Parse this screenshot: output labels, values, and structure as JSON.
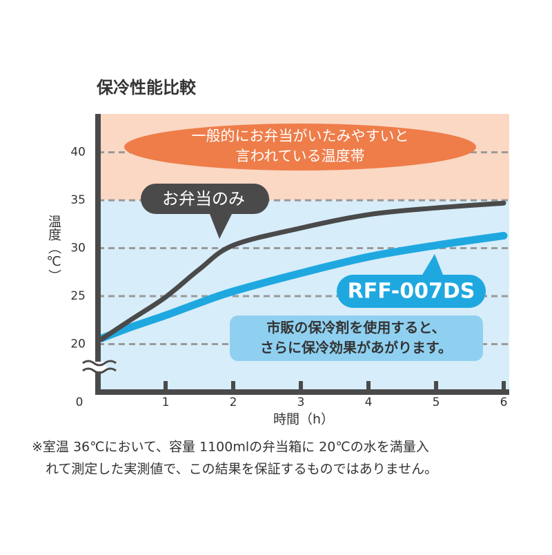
{
  "chart_data": {
    "type": "line",
    "title": "保冷性能比較",
    "y_label": "温度（℃）",
    "x_label": "時間（h）",
    "x": [
      0.05,
      0.5,
      1,
      1.5,
      2,
      3,
      4,
      5,
      6
    ],
    "series": [
      {
        "name": "お弁当のみ",
        "color": "#4a4a4a",
        "values": [
          20.5,
          22.6,
          24.9,
          27.8,
          30.3,
          32.1,
          33.5,
          34.2,
          34.7
        ]
      },
      {
        "name": "RFF-007DS",
        "color": "#1fa8e0",
        "values": [
          20.6,
          21.8,
          23.0,
          24.3,
          25.5,
          27.4,
          29.1,
          30.3,
          31.3
        ]
      }
    ],
    "xlim": [
      0,
      6
    ],
    "xticks": [
      0,
      1,
      2,
      3,
      4,
      5,
      6
    ],
    "ylim": [
      15,
      44
    ],
    "yticks": [
      20,
      25,
      30,
      35,
      40
    ],
    "grid": true,
    "danger_zone": {
      "from": 35,
      "label": [
        "一般的にお弁当がいたみやすいと",
        "言われている温度帯"
      ]
    },
    "note": [
      "市販の保冷剤を使用すると、",
      "さらに保冷効果があがります。"
    ],
    "footnote": [
      "※室温 36℃において、容量 1100mlの弁当箱に 20℃の水を満量入",
      "れて測定した実測値で、この結果を保証するものではありません。"
    ]
  }
}
